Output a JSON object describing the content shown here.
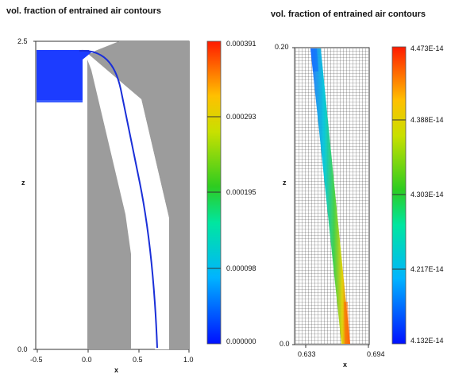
{
  "left_plot": {
    "title": "vol. fraction of entrained air contours",
    "y_axis_label": "z",
    "x_axis_label": "x",
    "y_ticks": [
      "2.5",
      "0.0"
    ],
    "x_ticks": [
      "-0.5",
      "0.0",
      "0.5",
      "1.0"
    ],
    "colorbar_labels": [
      "0.000391",
      "0.000293",
      "0.000195",
      "0.000098",
      "0.000000"
    ]
  },
  "right_plot": {
    "title": "vol. fraction of entrained air contours",
    "y_axis_label": "z",
    "x_axis_label": "x",
    "y_ticks": [
      "0.20",
      "0.0"
    ],
    "x_ticks": [
      "0.633",
      "0.694"
    ],
    "colorbar_labels": [
      "4.473E-14",
      "4.388E-14",
      "4.303E-14",
      "4.217E-14",
      "4.132E-14"
    ]
  },
  "colors": {
    "solid_gray": "#9c9c9c",
    "fluid_blue": "#1c3cff",
    "stream_blue": "#1a2fd8",
    "mesh_line": "#555555"
  }
}
